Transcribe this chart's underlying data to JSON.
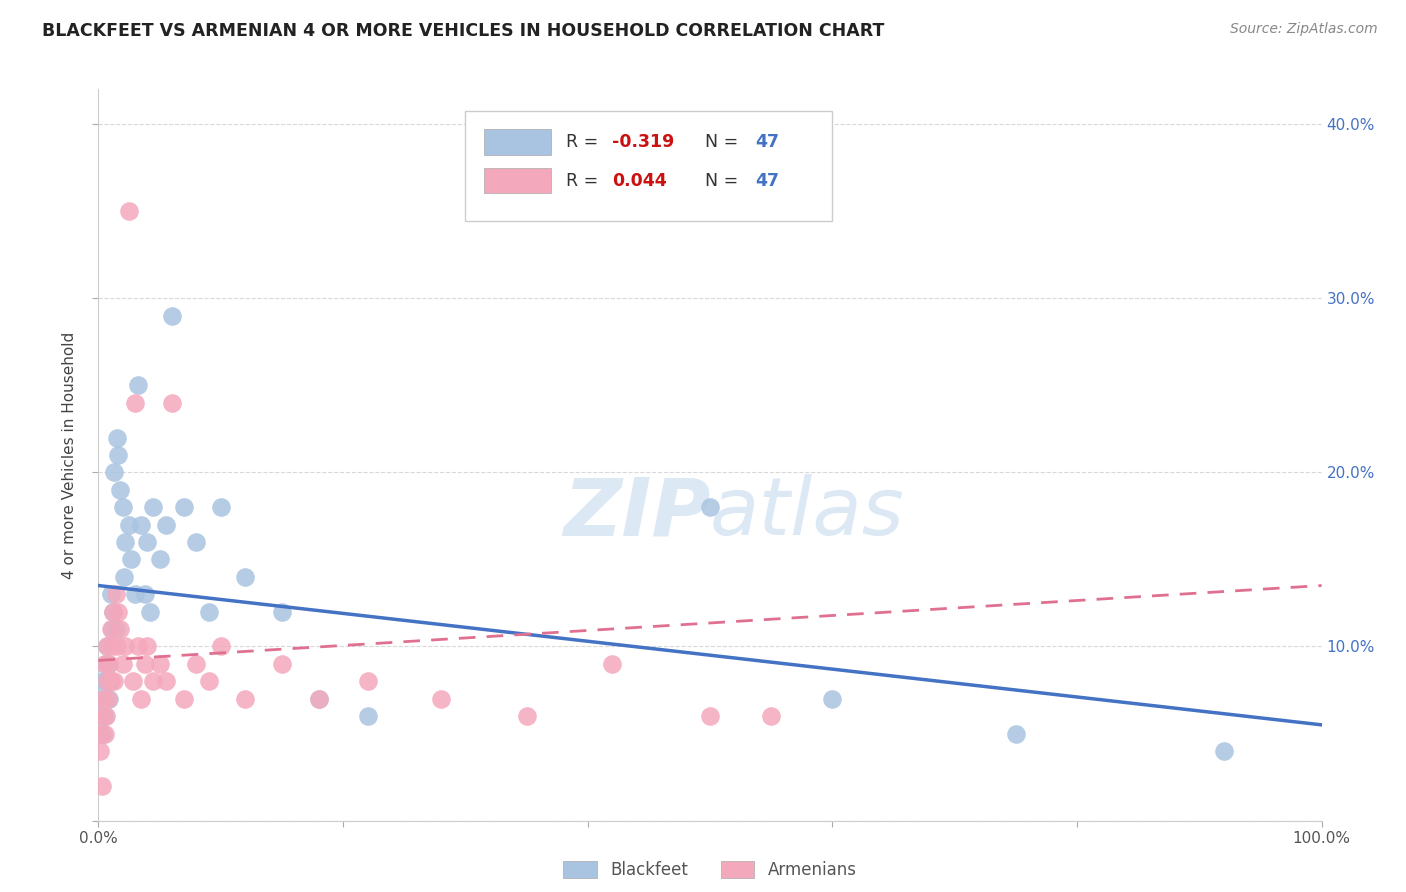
{
  "title": "BLACKFEET VS ARMENIAN 4 OR MORE VEHICLES IN HOUSEHOLD CORRELATION CHART",
  "source": "Source: ZipAtlas.com",
  "ylabel": "4 or more Vehicles in Household",
  "blackfeet_x": [
    0.001,
    0.002,
    0.003,
    0.004,
    0.005,
    0.005,
    0.006,
    0.007,
    0.007,
    0.008,
    0.009,
    0.01,
    0.01,
    0.011,
    0.012,
    0.013,
    0.014,
    0.015,
    0.016,
    0.018,
    0.02,
    0.021,
    0.022,
    0.025,
    0.027,
    0.03,
    0.032,
    0.035,
    0.038,
    0.04,
    0.042,
    0.045,
    0.05,
    0.055,
    0.06,
    0.07,
    0.08,
    0.09,
    0.1,
    0.12,
    0.15,
    0.18,
    0.22,
    0.5,
    0.6,
    0.75,
    0.92
  ],
  "blackfeet_y": [
    0.06,
    0.07,
    0.08,
    0.05,
    0.06,
    0.09,
    0.07,
    0.08,
    0.1,
    0.09,
    0.07,
    0.13,
    0.08,
    0.11,
    0.12,
    0.2,
    0.11,
    0.22,
    0.21,
    0.19,
    0.18,
    0.14,
    0.16,
    0.17,
    0.15,
    0.13,
    0.25,
    0.17,
    0.13,
    0.16,
    0.12,
    0.18,
    0.15,
    0.17,
    0.29,
    0.18,
    0.16,
    0.12,
    0.18,
    0.14,
    0.12,
    0.07,
    0.06,
    0.18,
    0.07,
    0.05,
    0.04
  ],
  "armenian_x": [
    0.001,
    0.002,
    0.003,
    0.003,
    0.004,
    0.005,
    0.005,
    0.006,
    0.007,
    0.007,
    0.008,
    0.009,
    0.01,
    0.01,
    0.011,
    0.012,
    0.013,
    0.014,
    0.015,
    0.016,
    0.018,
    0.02,
    0.022,
    0.025,
    0.028,
    0.03,
    0.032,
    0.035,
    0.038,
    0.04,
    0.045,
    0.05,
    0.055,
    0.06,
    0.07,
    0.08,
    0.09,
    0.1,
    0.12,
    0.15,
    0.18,
    0.22,
    0.28,
    0.35,
    0.42,
    0.5,
    0.55
  ],
  "armenian_y": [
    0.04,
    0.05,
    0.06,
    0.02,
    0.07,
    0.05,
    0.09,
    0.06,
    0.08,
    0.1,
    0.07,
    0.09,
    0.08,
    0.11,
    0.1,
    0.12,
    0.08,
    0.13,
    0.1,
    0.12,
    0.11,
    0.09,
    0.1,
    0.35,
    0.08,
    0.24,
    0.1,
    0.07,
    0.09,
    0.1,
    0.08,
    0.09,
    0.08,
    0.24,
    0.07,
    0.09,
    0.08,
    0.1,
    0.07,
    0.09,
    0.07,
    0.08,
    0.07,
    0.06,
    0.09,
    0.06,
    0.06
  ],
  "xlim": [
    0.0,
    1.0
  ],
  "ylim": [
    0.0,
    0.42
  ],
  "y_ticks": [
    0.0,
    0.1,
    0.2,
    0.3,
    0.4
  ],
  "y_tick_labels_right": [
    "",
    "10.0%",
    "20.0%",
    "30.0%",
    "40.0%"
  ],
  "blue_color": "#a8c4e0",
  "pink_color": "#f4a8bc",
  "line_blue": "#4472c4",
  "line_pink": "#e07090",
  "grid_color": "#d8d8d8",
  "right_axis_color": "#4472c4",
  "background": "#ffffff",
  "watermark_color": "#dce8f4",
  "source_color": "#888888",
  "title_color": "#222222"
}
